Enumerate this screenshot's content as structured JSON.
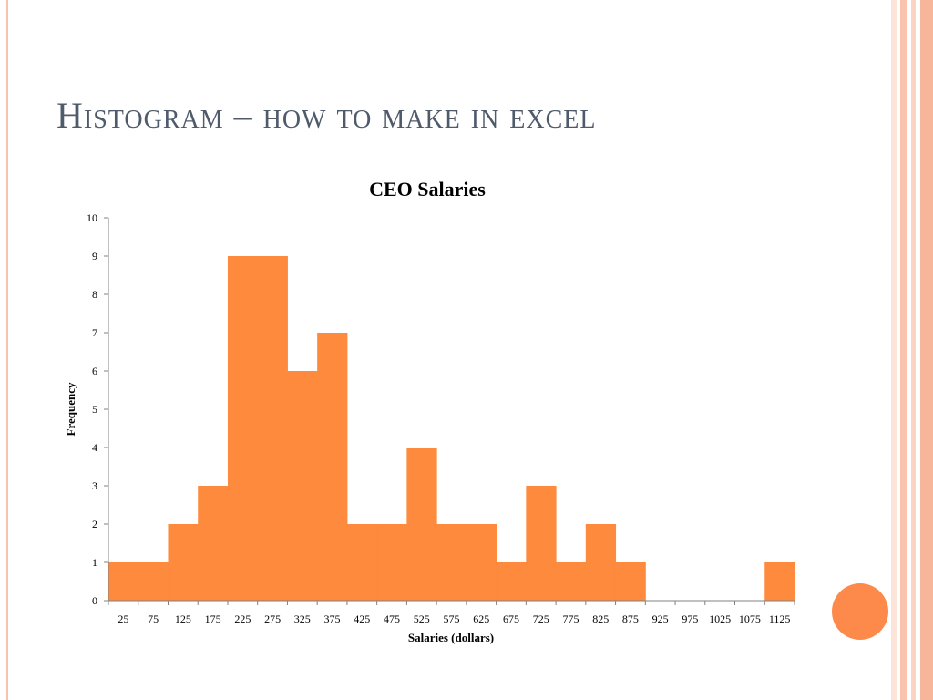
{
  "slide": {
    "title": "Histogram – how to make in excel"
  },
  "colors": {
    "bar": "#fd8a3d",
    "title_text": "#4f5a6b",
    "frame_stripe_light": "#fbd3c3",
    "frame_stripe_dark": "#f7b59a",
    "accent_circle": "#fd8a4b"
  },
  "chart_data": {
    "type": "bar",
    "title": "CEO Salaries",
    "xlabel": "Salaries (dollars)",
    "ylabel": "Frequency",
    "categories": [
      "25",
      "75",
      "125",
      "175",
      "225",
      "275",
      "325",
      "375",
      "425",
      "475",
      "525",
      "575",
      "625",
      "675",
      "725",
      "775",
      "825",
      "875",
      "925",
      "975",
      "1025",
      "1075",
      "1125"
    ],
    "values": [
      1,
      1,
      2,
      3,
      9,
      9,
      6,
      7,
      2,
      2,
      4,
      2,
      2,
      1,
      3,
      1,
      2,
      1,
      0,
      0,
      0,
      0,
      1
    ],
    "ylim": [
      0,
      10
    ],
    "yticks": [
      0,
      1,
      2,
      3,
      4,
      5,
      6,
      7,
      8,
      9,
      10
    ],
    "grid": false,
    "legend": "none",
    "bar_gap": 0
  }
}
